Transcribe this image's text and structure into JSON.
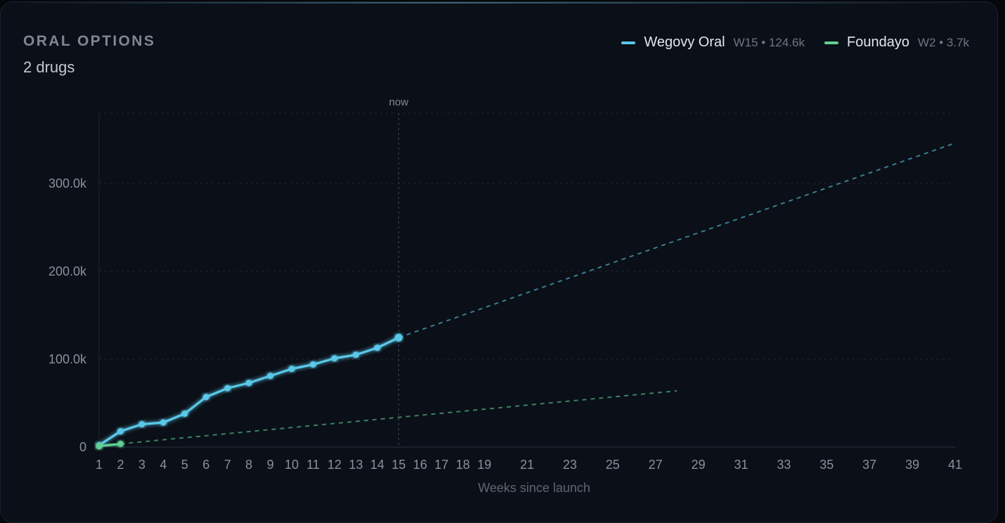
{
  "panel": {
    "title": "ORAL OPTIONS",
    "subtitle": "2 drugs"
  },
  "legend": [
    {
      "name": "Wegovy Oral",
      "meta": "W15 • 124.6k",
      "color": "#5ac8e8"
    },
    {
      "name": "Foundayo",
      "meta": "W2 • 3.7k",
      "color": "#5fcf92"
    }
  ],
  "chart_data": {
    "type": "line",
    "xlabel": "Weeks since launch",
    "ylabel": "",
    "x_ticks": [
      1,
      2,
      3,
      4,
      5,
      6,
      7,
      8,
      9,
      10,
      11,
      12,
      13,
      14,
      15,
      16,
      17,
      18,
      19,
      21,
      23,
      25,
      27,
      29,
      31,
      33,
      35,
      37,
      39,
      41
    ],
    "y_ticks": [
      0,
      100000,
      200000,
      300000
    ],
    "y_tick_labels": [
      "0",
      "100.0k",
      "200.0k",
      "300.0k"
    ],
    "xlim": [
      1,
      41
    ],
    "ylim": [
      0,
      380000
    ],
    "grid": true,
    "legend_position": "top-right",
    "now_marker": {
      "x": 15,
      "label": "now"
    },
    "series": [
      {
        "name": "Wegovy Oral",
        "color": "#5ac8e8",
        "x": [
          1,
          2,
          3,
          4,
          5,
          6,
          7,
          8,
          9,
          10,
          11,
          12,
          13,
          14,
          15
        ],
        "y": [
          2000,
          18000,
          26000,
          28000,
          38000,
          57000,
          67000,
          73000,
          81000,
          89000,
          94000,
          101000,
          105000,
          113000,
          124600
        ],
        "projection": {
          "x": [
            15,
            41
          ],
          "y": [
            124600,
            346000
          ]
        }
      },
      {
        "name": "Foundayo",
        "color": "#5fcf92",
        "x": [
          1,
          2
        ],
        "y": [
          1000,
          3700
        ],
        "projection": {
          "x": [
            2,
            28
          ],
          "y": [
            3700,
            64000
          ]
        }
      }
    ]
  }
}
